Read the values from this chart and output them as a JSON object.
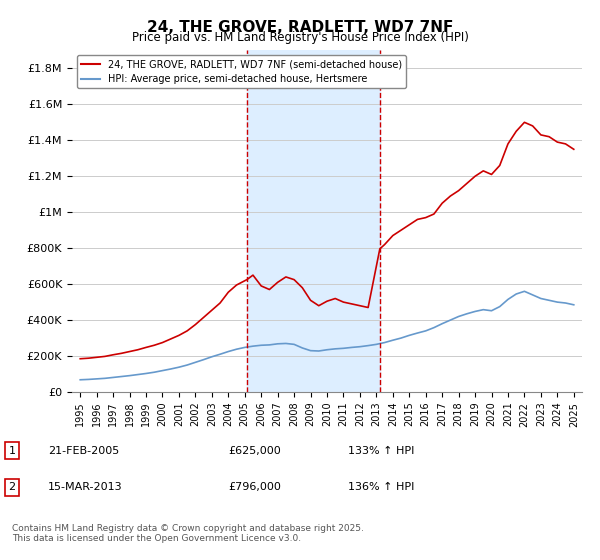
{
  "title": "24, THE GROVE, RADLETT, WD7 7NF",
  "subtitle": "Price paid vs. HM Land Registry's House Price Index (HPI)",
  "legend_line1": "24, THE GROVE, RADLETT, WD7 7NF (semi-detached house)",
  "legend_line2": "HPI: Average price, semi-detached house, Hertsmere",
  "footnote": "Contains HM Land Registry data © Crown copyright and database right 2025.\nThis data is licensed under the Open Government Licence v3.0.",
  "transaction1_label": "1",
  "transaction1_date": "21-FEB-2005",
  "transaction1_price": "£625,000",
  "transaction1_hpi": "133% ↑ HPI",
  "transaction2_label": "2",
  "transaction2_date": "15-MAR-2013",
  "transaction2_price": "£796,000",
  "transaction2_hpi": "136% ↑ HPI",
  "vline1_x": 2005.13,
  "vline2_x": 2013.21,
  "red_color": "#cc0000",
  "blue_color": "#6699cc",
  "shade_color": "#ddeeff",
  "ylim": [
    0,
    1900000
  ],
  "xlim": [
    1994.5,
    2025.5
  ],
  "red_x": [
    1995,
    1995.5,
    1996,
    1996.5,
    1997,
    1997.5,
    1998,
    1998.5,
    1999,
    1999.5,
    2000,
    2000.5,
    2001,
    2001.5,
    2002,
    2002.5,
    2003,
    2003.5,
    2004,
    2004.5,
    2005.13,
    2005.5,
    2006,
    2006.5,
    2007,
    2007.5,
    2008,
    2008.5,
    2009,
    2009.5,
    2010,
    2010.5,
    2011,
    2011.5,
    2012,
    2012.5,
    2013.21,
    2013.5,
    2014,
    2014.5,
    2015,
    2015.5,
    2016,
    2016.5,
    2017,
    2017.5,
    2018,
    2018.5,
    2019,
    2019.5,
    2020,
    2020.5,
    2021,
    2021.5,
    2022,
    2022.5,
    2023,
    2023.5,
    2024,
    2024.5,
    2025
  ],
  "red_y": [
    185000,
    188000,
    193000,
    198000,
    207000,
    215000,
    225000,
    235000,
    248000,
    260000,
    275000,
    295000,
    315000,
    340000,
    375000,
    415000,
    455000,
    495000,
    555000,
    595000,
    625000,
    650000,
    590000,
    570000,
    610000,
    640000,
    625000,
    580000,
    510000,
    480000,
    505000,
    520000,
    500000,
    490000,
    480000,
    470000,
    796000,
    820000,
    870000,
    900000,
    930000,
    960000,
    970000,
    990000,
    1050000,
    1090000,
    1120000,
    1160000,
    1200000,
    1230000,
    1210000,
    1260000,
    1380000,
    1450000,
    1500000,
    1480000,
    1430000,
    1420000,
    1390000,
    1380000,
    1350000
  ],
  "blue_x": [
    1995,
    1995.5,
    1996,
    1996.5,
    1997,
    1997.5,
    1998,
    1998.5,
    1999,
    1999.5,
    2000,
    2000.5,
    2001,
    2001.5,
    2002,
    2002.5,
    2003,
    2003.5,
    2004,
    2004.5,
    2005,
    2005.5,
    2006,
    2006.5,
    2007,
    2007.5,
    2008,
    2008.5,
    2009,
    2009.5,
    2010,
    2010.5,
    2011,
    2011.5,
    2012,
    2012.5,
    2013,
    2013.5,
    2014,
    2014.5,
    2015,
    2015.5,
    2016,
    2016.5,
    2017,
    2017.5,
    2018,
    2018.5,
    2019,
    2019.5,
    2020,
    2020.5,
    2021,
    2021.5,
    2022,
    2022.5,
    2023,
    2023.5,
    2024,
    2024.5,
    2025
  ],
  "blue_y": [
    68000,
    70000,
    73000,
    76000,
    81000,
    86000,
    91000,
    97000,
    103000,
    110000,
    119000,
    128000,
    138000,
    150000,
    165000,
    180000,
    196000,
    210000,
    225000,
    238000,
    248000,
    255000,
    260000,
    262000,
    268000,
    270000,
    265000,
    245000,
    230000,
    228000,
    235000,
    240000,
    243000,
    248000,
    252000,
    258000,
    265000,
    275000,
    288000,
    300000,
    315000,
    328000,
    340000,
    358000,
    380000,
    400000,
    420000,
    435000,
    448000,
    458000,
    452000,
    475000,
    515000,
    545000,
    560000,
    540000,
    520000,
    510000,
    500000,
    495000,
    485000
  ]
}
